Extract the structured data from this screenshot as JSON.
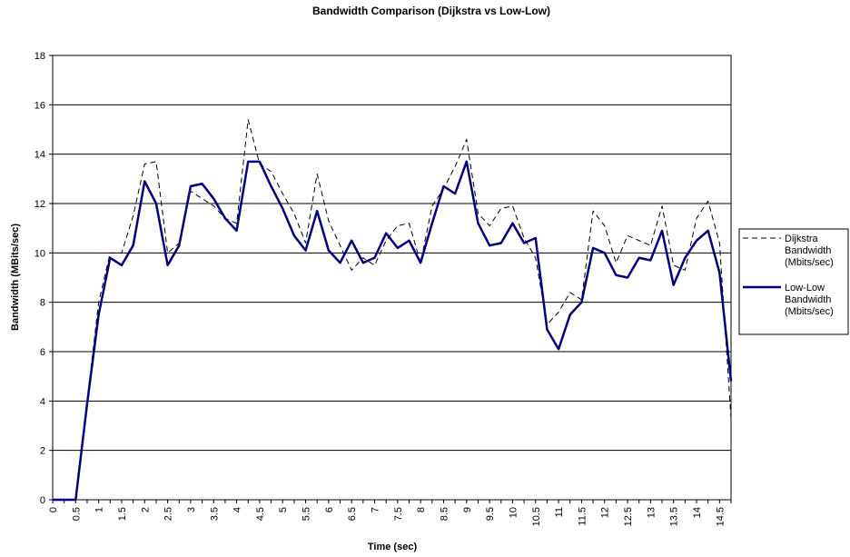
{
  "chart_data": {
    "type": "line",
    "title": "Bandwidth Comparison (Dijkstra vs Low-Low)",
    "xlabel": "Time (sec)",
    "ylabel": "Bandwidth (MBits/sec)",
    "ylim": [
      0,
      18
    ],
    "yticks": [
      "0",
      "2",
      "4",
      "6",
      "8",
      "10",
      "12",
      "14",
      "16",
      "18"
    ],
    "xlim": [
      0,
      14.75
    ],
    "xticks": [
      "0",
      "0.5",
      "1",
      "1.5",
      "2",
      "2.5",
      "3",
      "3.5",
      "4",
      "4.5",
      "5",
      "5.5",
      "6",
      "6.5",
      "7",
      "7.5",
      "8",
      "8.5",
      "9",
      "9.5",
      "10",
      "10.5",
      "11",
      "11.5",
      "12",
      "12.5",
      "13",
      "13.5",
      "14",
      "14.5"
    ],
    "grid": "horizontal",
    "legend_position": "right",
    "x": [
      0,
      0.25,
      0.5,
      0.75,
      1,
      1.25,
      1.5,
      1.75,
      2,
      2.25,
      2.5,
      2.75,
      3,
      3.25,
      3.5,
      3.75,
      4,
      4.25,
      4.5,
      4.75,
      5,
      5.25,
      5.5,
      5.75,
      6,
      6.25,
      6.5,
      6.75,
      7,
      7.25,
      7.5,
      7.75,
      8,
      8.25,
      8.5,
      8.75,
      9,
      9.25,
      9.5,
      9.75,
      10,
      10.25,
      10.5,
      10.75,
      11,
      11.25,
      11.5,
      11.75,
      12,
      12.25,
      12.5,
      12.75,
      13,
      13.25,
      13.5,
      13.75,
      14,
      14.25,
      14.5,
      14.75
    ],
    "series": [
      {
        "name": "Dijkstra Bandwidth (Mbits/sec)",
        "color": "#000000",
        "style": "dashed",
        "values": [
          0,
          0,
          0,
          4,
          8,
          10,
          10,
          11.5,
          13.6,
          13.7,
          10,
          10.4,
          12.5,
          12.2,
          11.9,
          11.4,
          11.2,
          15.4,
          13.6,
          13.3,
          12.4,
          11.6,
          10.4,
          13.2,
          11.3,
          10.3,
          9.3,
          9.8,
          9.5,
          10.5,
          11.1,
          11.2,
          9.6,
          11.9,
          12.6,
          13.5,
          14.6,
          11.6,
          11.1,
          11.8,
          11.9,
          10.6,
          9.8,
          7.1,
          7.6,
          8.4,
          8.1,
          11.7,
          11.1,
          9.6,
          10.7,
          10.5,
          10.3,
          11.9,
          9.5,
          9.3,
          11.4,
          12.1,
          10.4,
          3.3
        ]
      },
      {
        "name": "Low-Low Bandwidth (Mbits/sec)",
        "color": "#000080",
        "style": "solid",
        "values": [
          0,
          0,
          0,
          3.9,
          7.5,
          9.8,
          9.5,
          10.3,
          12.9,
          12.0,
          9.5,
          10.3,
          12.7,
          12.8,
          12.2,
          11.4,
          10.9,
          13.7,
          13.7,
          12.7,
          11.8,
          10.7,
          10.1,
          11.7,
          10.1,
          9.6,
          10.5,
          9.6,
          9.8,
          10.8,
          10.2,
          10.5,
          9.6,
          11.2,
          12.7,
          12.4,
          13.7,
          11.2,
          10.3,
          10.4,
          11.2,
          10.4,
          10.6,
          6.9,
          6.1,
          7.5,
          8.0,
          10.2,
          10.0,
          9.1,
          9.0,
          9.8,
          9.7,
          10.9,
          8.7,
          9.8,
          10.5,
          10.9,
          9.2,
          4.8
        ]
      }
    ]
  }
}
